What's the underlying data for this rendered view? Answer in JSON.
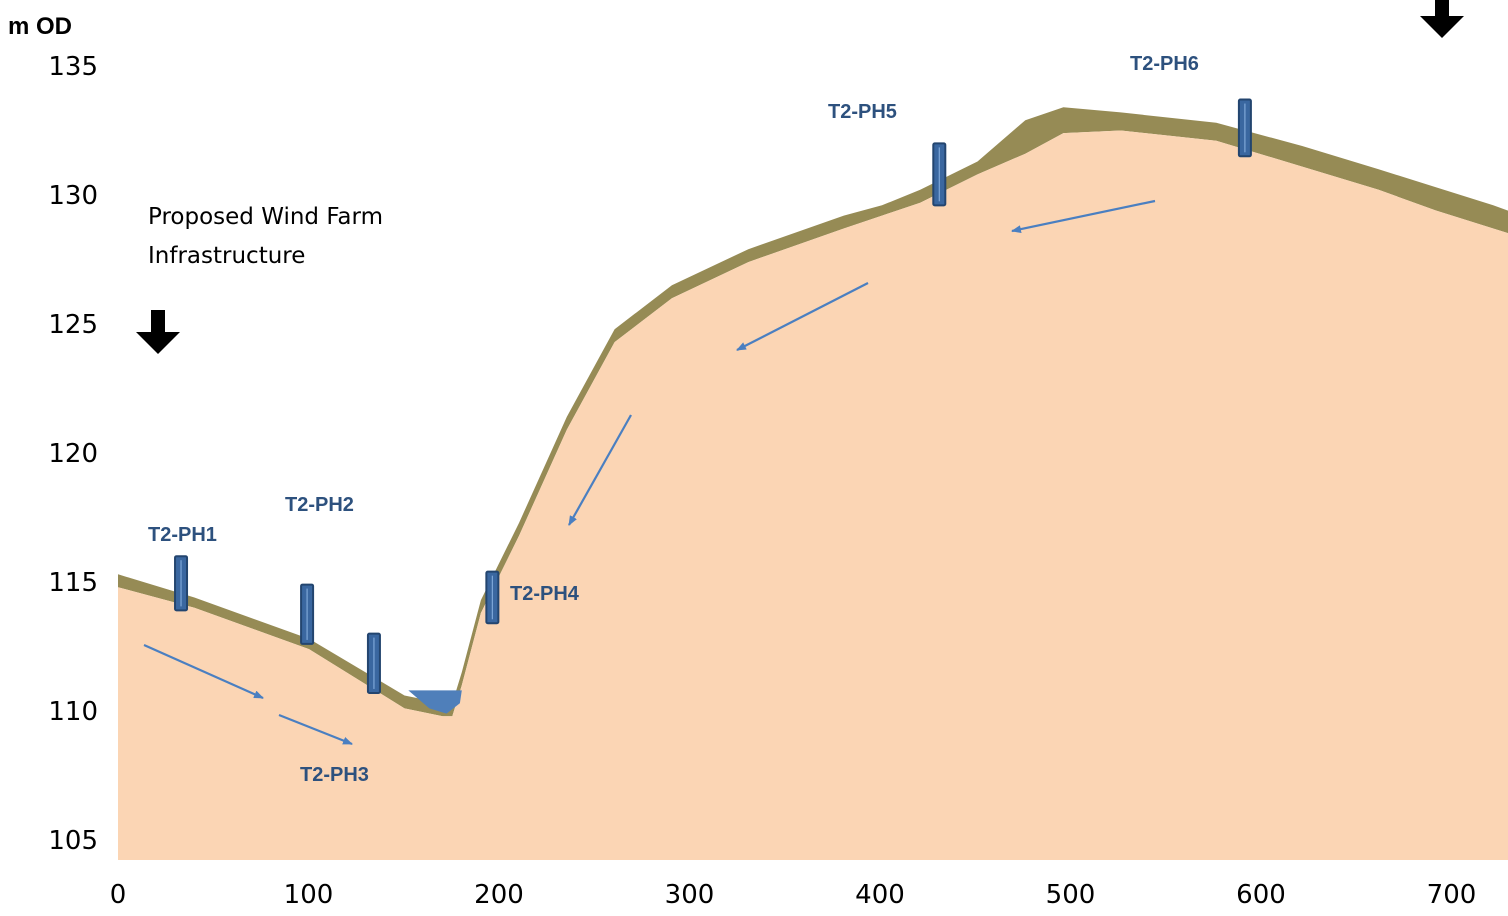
{
  "chart_data": {
    "type": "area",
    "ylabel": "m OD",
    "x_ticks": [
      0,
      100,
      200,
      300,
      400,
      500,
      600,
      700
    ],
    "y_ticks": [
      105,
      110,
      115,
      120,
      125,
      130,
      135
    ],
    "xlim": [
      0,
      700
    ],
    "ylim": [
      104,
      137
    ],
    "series": [
      {
        "values": [
          [
            0,
            115.3
          ],
          [
            40,
            114.4
          ],
          [
            100,
            112.8
          ],
          [
            150,
            110.6
          ],
          [
            170,
            110.3
          ],
          [
            175,
            110.3
          ],
          [
            180,
            111.5
          ],
          [
            190,
            114.3
          ],
          [
            210,
            117.3
          ],
          [
            235,
            121.4
          ],
          [
            260,
            124.8
          ],
          [
            290,
            126.5
          ],
          [
            330,
            127.9
          ],
          [
            380,
            129.2
          ],
          [
            400,
            129.6
          ],
          [
            420,
            130.2
          ],
          [
            450,
            131.3
          ],
          [
            475,
            132.9
          ],
          [
            495,
            133.4
          ],
          [
            525,
            133.2
          ],
          [
            575,
            132.8
          ],
          [
            620,
            131.9
          ],
          [
            660,
            131.0
          ],
          [
            690,
            130.3
          ],
          [
            720,
            129.6
          ],
          [
            750,
            128.8
          ],
          [
            765,
            128.4
          ]
        ]
      },
      {
        "values": [
          [
            0,
            114.8
          ],
          [
            40,
            114.0
          ],
          [
            100,
            112.4
          ],
          [
            150,
            110.1
          ],
          [
            170,
            109.8
          ],
          [
            175,
            109.8
          ],
          [
            180,
            111.0
          ],
          [
            190,
            113.8
          ],
          [
            210,
            116.8
          ],
          [
            235,
            120.9
          ],
          [
            260,
            124.3
          ],
          [
            290,
            126.0
          ],
          [
            330,
            127.4
          ],
          [
            380,
            128.7
          ],
          [
            400,
            129.2
          ],
          [
            420,
            129.7
          ],
          [
            450,
            130.8
          ],
          [
            475,
            131.6
          ],
          [
            495,
            132.4
          ],
          [
            525,
            132.5
          ],
          [
            575,
            132.1
          ],
          [
            620,
            131.1
          ],
          [
            660,
            130.2
          ],
          [
            690,
            129.4
          ],
          [
            720,
            128.7
          ],
          [
            750,
            128.0
          ],
          [
            765,
            127.6
          ]
        ]
      }
    ],
    "water_level": 110.8,
    "piezometers": [
      {
        "label": "T2-PH1",
        "x": 33,
        "top": 116.0,
        "bottom": 113.9
      },
      {
        "label": "T2-PH2",
        "x": 99,
        "top": 114.9,
        "bottom": 112.6
      },
      {
        "label": "T2-PH3",
        "x": 134,
        "top": 113.0,
        "bottom": 110.7
      },
      {
        "label": "T2-PH4",
        "x": 196,
        "top": 115.4,
        "bottom": 113.4
      },
      {
        "label": "T2-PH5",
        "x": 430,
        "top": 132.0,
        "bottom": 129.6
      },
      {
        "label": "T2-PH6",
        "x": 590,
        "top": 133.7,
        "bottom": 131.5
      }
    ]
  },
  "annotations": {
    "infrastructure_line1": "Proposed Wind Farm",
    "infrastructure_line2": "Infrastructure"
  },
  "colors": {
    "ground": "#fbd5b4",
    "topsoil": "#968b55",
    "water": "#4f7fba",
    "piezometer": "#3a67a0",
    "piezometer_edge": "#23456f",
    "label": "#2d517e",
    "arrow": "#4a7fc1",
    "marker": "#000000"
  }
}
